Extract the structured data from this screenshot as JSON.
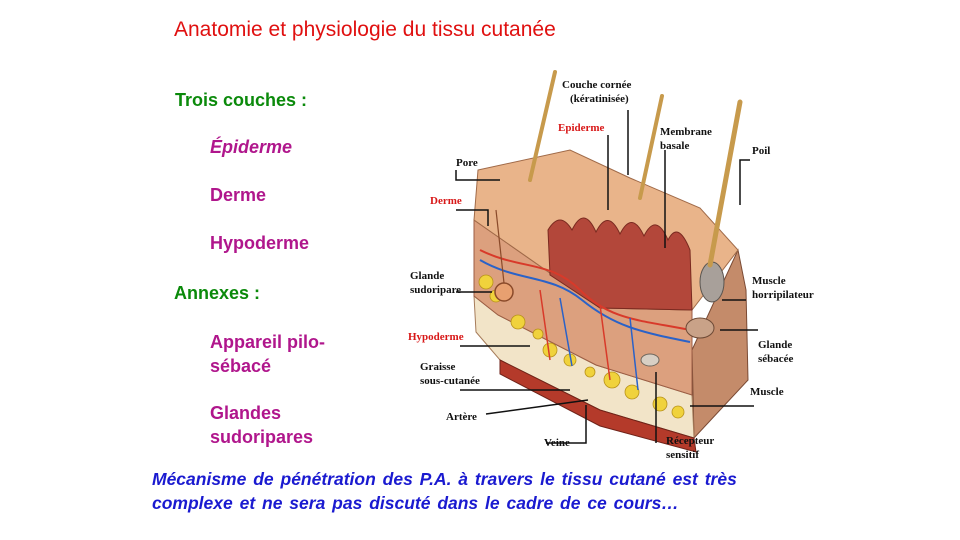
{
  "title": "Anatomie et physiologie du tissu cutanée",
  "layers": {
    "heading": "Trois couches :",
    "items": [
      "Épiderme",
      "Derme",
      "Hypoderme"
    ]
  },
  "annexes": {
    "heading": "Annexes :",
    "items": [
      [
        "Appareil pilo-",
        "sébacé"
      ],
      [
        "Glandes",
        "sudoripares"
      ]
    ]
  },
  "footer": {
    "line1": "Mécanisme de pénétration des P.A. à travers le tissu cutané est très",
    "line2": "complexe et ne sera pas discuté dans le cadre de ce cours…"
  },
  "diagram": {
    "labels": {
      "couche_cornee": [
        "Couche cornée",
        "(kératinisée)"
      ],
      "epiderme": "Epiderme",
      "membrane_basale": [
        "Membrane",
        "basale"
      ],
      "poil": "Poil",
      "pore": "Pore",
      "derme": "Derme",
      "glande_sudoripare": [
        "Glande",
        "sudoripare"
      ],
      "muscle_horripilateur": [
        "Muscle",
        "horripilateur"
      ],
      "hypoderme": "Hypoderme",
      "glande_sebacee": [
        "Glande",
        "sébacée"
      ],
      "graisse": [
        "Graisse",
        "sous-cutanée"
      ],
      "muscle": "Muscle",
      "artere": "Artère",
      "veine": "Veine",
      "recepteur": [
        "Récepteur",
        "sensitif"
      ]
    },
    "colors": {
      "epidermis": "#e9b48a",
      "dermis": "#dca07e",
      "papillae": "#b3473a",
      "fat": "#f0d23c",
      "hypodermis": "#f2e4c8",
      "muscle": "#b43a2a",
      "hair": "#c79a4c",
      "artery": "#d83a2a",
      "vein": "#2a62c8"
    }
  }
}
